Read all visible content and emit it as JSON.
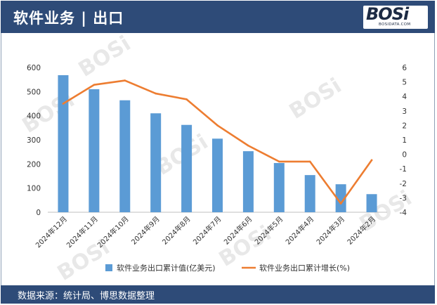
{
  "header": {
    "title": "软件业务 | 出口",
    "logo_text": "BOSi",
    "logo_sub": "BOSIDATA.COM"
  },
  "footer": {
    "source": "数据来源：统计局、博思数据整理"
  },
  "colors": {
    "header_bg": "#2e4b78",
    "bar": "#5b9bd5",
    "line": "#ed7d31"
  },
  "chart_data": {
    "type": "bar",
    "categories": [
      "2024年12月",
      "2024年11月",
      "2024年10月",
      "2024年9月",
      "2024年8月",
      "2024年7月",
      "2024年6月",
      "2024年5月",
      "2024年4月",
      "2024年3月",
      "2024年2月"
    ],
    "series": [
      {
        "name": "软件业务出口累计值(亿美元)",
        "type": "bar",
        "axis": "left",
        "values": [
          568,
          510,
          464,
          410,
          362,
          305,
          253,
          204,
          154,
          116,
          75
        ]
      },
      {
        "name": "软件业务出口累计增长(%)",
        "type": "line",
        "axis": "right",
        "values": [
          3.5,
          4.8,
          5.1,
          4.2,
          3.8,
          2.0,
          0.6,
          -0.5,
          -0.5,
          -3.4,
          -0.4
        ]
      }
    ],
    "ylim_left": [
      0,
      600
    ],
    "yticks_left": [
      0,
      100,
      200,
      300,
      400,
      500,
      600
    ],
    "ylim_right": [
      -4,
      6
    ],
    "yticks_right": [
      -4,
      -3,
      -2,
      -1,
      0,
      1,
      2,
      3,
      4,
      5,
      6
    ],
    "legend": "bottom",
    "grid": false
  }
}
